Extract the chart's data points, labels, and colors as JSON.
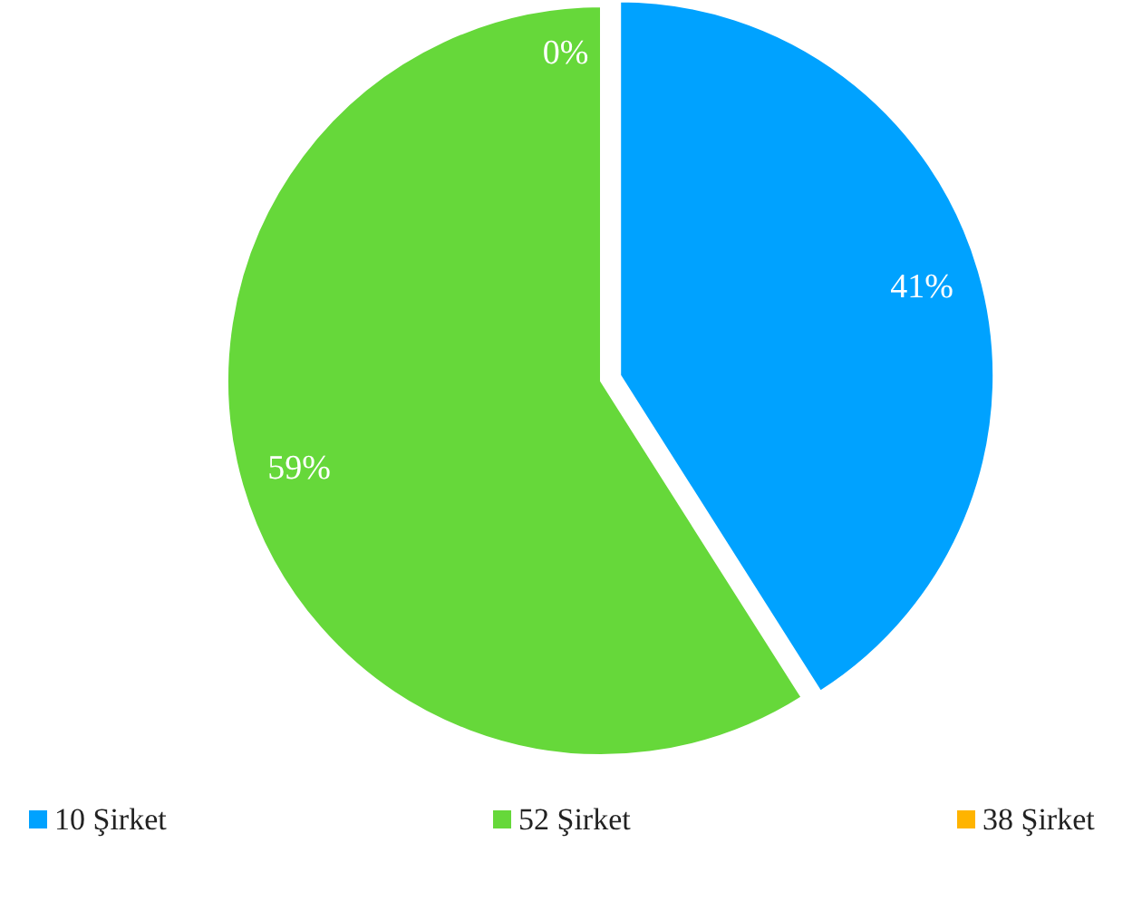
{
  "chart_data": {
    "type": "pie",
    "categories": [
      "10 Şirket",
      "52 Şirket",
      "38 Şirket"
    ],
    "values": [
      41,
      59,
      0
    ],
    "colors": [
      "#00a2ff",
      "#66d83a",
      "#ffb400"
    ],
    "value_labels": [
      "41%",
      "59%",
      "0%"
    ],
    "legend": "bottom"
  }
}
